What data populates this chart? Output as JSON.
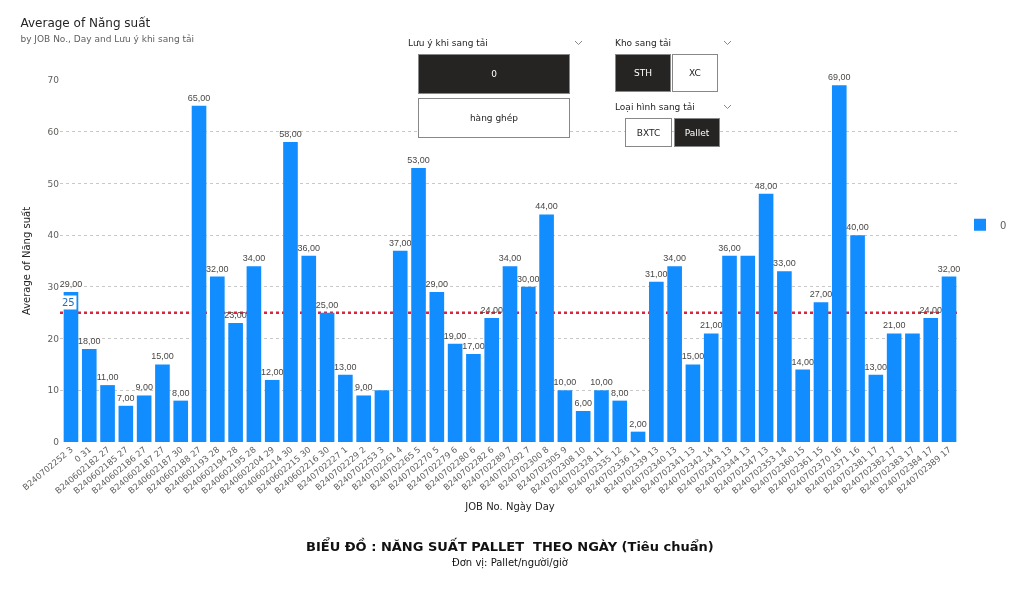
{
  "chart_data": [
    {
      "type": "bar",
      "title": "Average of Năng suất",
      "subtitle": "by JOB No., Day and Lưu ý khi sang tải",
      "xlabel": "JOB No. Ngày Day",
      "ylabel": "Average of Năng suất",
      "categories": [
        "B240702252 3",
        "0 31",
        "B240602182 27",
        "B240602185 27",
        "B240602186 27",
        "B240602187 27",
        "B240602187 30",
        "B240602188 27",
        "B240602193 28",
        "B240602194 28",
        "B240602195 28",
        "B240602204 29",
        "B240602214 30",
        "B240602215 30",
        "B240602216 30",
        "B240702227 1",
        "B240702229 2",
        "B240702253 3",
        "B240702261 4",
        "B240702265 5",
        "B240702270 5",
        "B240702279 6",
        "B240702280 6",
        "B240702282 6",
        "B240702289 7",
        "B240702292 7",
        "B240702300 8",
        "B240702305 9",
        "B240702308 10",
        "B240702328 11",
        "B240702335 12",
        "B240702336 11",
        "B240702339 13",
        "B240702340 13",
        "B240702341 13",
        "B240702342 14",
        "B240702343 13",
        "B240702344 13",
        "B240702347 13",
        "B240702353 14",
        "B240702360 15",
        "B240702361 15",
        "B240702370 16",
        "B240702371 16",
        "B240702381 17",
        "B240702382 17",
        "B240702383 17",
        "B240702384 17",
        "B240702389 17"
      ],
      "series": [
        {
          "name": "0",
          "color": "#118dff",
          "values": [
            29,
            18,
            11,
            7,
            9,
            15,
            8,
            65,
            32,
            23,
            34,
            12,
            58,
            36,
            25,
            13,
            9,
            10,
            37,
            53,
            29,
            19,
            17,
            24,
            34,
            30,
            44,
            10,
            6,
            10,
            8,
            2,
            31,
            34,
            15,
            21,
            36,
            36,
            48,
            33,
            14,
            27,
            69,
            40,
            13,
            21,
            21,
            24,
            32
          ],
          "value_labels": [
            "29,00",
            "18,00",
            "11,00",
            "7,00",
            "9,00",
            "15,00",
            "8,00",
            "65,00",
            "32,00",
            "23,00",
            "34,00",
            "12,00",
            "58,00",
            "36,00",
            "25,00",
            "13,00",
            "9,00",
            null,
            "37,00",
            "53,00",
            "29,00",
            "19,00",
            "17,00",
            "24,00",
            "34,00",
            "30,00",
            "44,00",
            "10,00",
            "6,00",
            "10,00",
            "8,00",
            "2,00",
            "31,00",
            "34,00",
            "15,00",
            "21,00",
            "36,00",
            null,
            "48,00",
            "33,00",
            "14,00",
            "27,00",
            "69,00",
            "40,00",
            "13,00",
            "21,00",
            null,
            "24,00",
            "32,00"
          ]
        }
      ],
      "ylim": [
        0,
        70
      ],
      "yticks": [
        0,
        10,
        20,
        30,
        40,
        50,
        60,
        70
      ],
      "grid": "y",
      "legend": "right",
      "ref_lines": [
        {
          "axis": "y",
          "value": 25,
          "label": "25",
          "color": "#d9263a",
          "line_style": "dotted"
        }
      ],
      "annotations": [
        "BIỂU ĐỒ : NĂNG SUẤT PALLET  THEO NGÀY (Tiêu chuẩn)",
        "Đơn vị: Pallet/người/giờ"
      ]
    },
    {
      "type": "other",
      "title": "Lưu ý khi sang tải",
      "annotations": [
        "0",
        "hàng ghép"
      ],
      "colors": [
        "#252423",
        "#ffffff"
      ]
    },
    {
      "type": "other",
      "title": "Kho sang tải",
      "annotations": [
        "STH",
        "XC"
      ],
      "colors": [
        "#252423",
        "#ffffff"
      ]
    },
    {
      "type": "other",
      "title": "Loại hình sang tải",
      "annotations": [
        "BXTC",
        "Pallet"
      ],
      "colors": [
        "#ffffff",
        "#252423"
      ]
    }
  ]
}
